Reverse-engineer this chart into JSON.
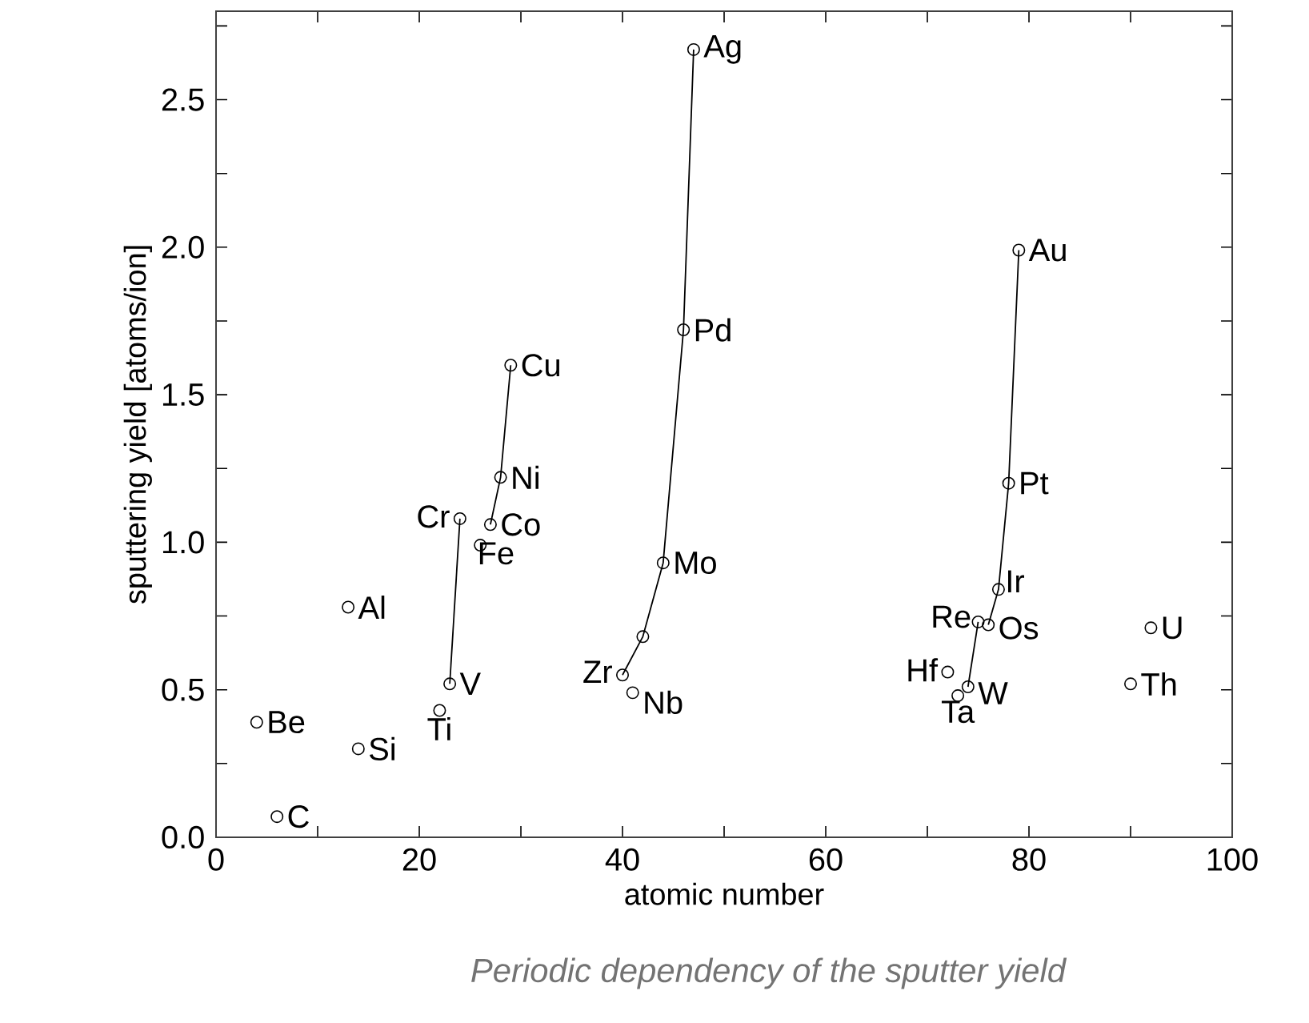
{
  "chart_data": {
    "type": "scatter",
    "xlabel": "atomic number",
    "ylabel": "sputtering yield [atoms/ion]",
    "xlim": [
      0,
      100
    ],
    "ylim": [
      0,
      2.8
    ],
    "xticks": [
      0,
      {
        "value": 10,
        "label": null
      },
      20,
      {
        "value": 30,
        "label": null
      },
      40,
      {
        "value": 50,
        "label": null
      },
      60,
      {
        "value": 70,
        "label": null
      },
      80,
      {
        "value": 90,
        "label": null
      },
      100
    ],
    "yticks": [
      {
        "value": 0,
        "label": "0.0"
      },
      {
        "value": 0.25,
        "label": null
      },
      0.5,
      {
        "value": 0.75,
        "label": null
      },
      {
        "value": 1,
        "label": "1.0"
      },
      {
        "value": 1.25,
        "label": null
      },
      1.5,
      {
        "value": 1.75,
        "label": null
      },
      {
        "value": 2,
        "label": "2.0"
      },
      {
        "value": 2.25,
        "label": null
      },
      2.5,
      {
        "value": 2.75,
        "label": null
      }
    ],
    "marker": "circle",
    "line_style": "solid",
    "series": [
      {
        "color": "#000000",
        "x": [
          4,
          6,
          13,
          14,
          22,
          26,
          41,
          72,
          73,
          90,
          92
        ],
        "values": [
          0.39,
          0.07,
          0.78,
          0.3,
          0.43,
          0.99,
          0.49,
          0.56,
          0.48,
          0.52,
          0.71
        ]
      },
      {
        "type": "line",
        "color": "#000000",
        "x": [
          23,
          24
        ],
        "values": [
          0.52,
          1.08
        ]
      },
      {
        "type": "line",
        "color": "#000000",
        "x": [
          27,
          28,
          29
        ],
        "values": [
          1.06,
          1.22,
          1.6
        ]
      },
      {
        "type": "line",
        "color": "#000000",
        "x": [
          40,
          42,
          44,
          46,
          47
        ],
        "values": [
          0.55,
          0.68,
          0.93,
          1.72,
          2.67
        ]
      },
      {
        "type": "line",
        "color": "#000000",
        "x": [
          74,
          75
        ],
        "values": [
          0.51,
          0.73
        ]
      },
      {
        "type": "line",
        "color": "#000000",
        "x": [
          76,
          77,
          78,
          79
        ],
        "values": [
          0.72,
          0.84,
          1.2,
          1.99
        ]
      }
    ],
    "annotations": [
      {
        "text": "Be",
        "x": 4,
        "y": 0.39
      },
      {
        "text": "C",
        "x": 6,
        "y": 0.07
      },
      {
        "text": "Al",
        "x": 13,
        "y": 0.78
      },
      {
        "text": "Si",
        "x": 14,
        "y": 0.3
      },
      {
        "text": "Ti",
        "x": 22,
        "y": 0.43
      },
      {
        "text": "V",
        "x": 23,
        "y": 0.52
      },
      {
        "text": "Cr",
        "x": 24,
        "y": 1.08
      },
      {
        "text": "Fe",
        "x": 26,
        "y": 0.99
      },
      {
        "text": "Co",
        "x": 27,
        "y": 1.06
      },
      {
        "text": "Ni",
        "x": 28,
        "y": 1.22
      },
      {
        "text": "Cu",
        "x": 29,
        "y": 1.6
      },
      {
        "text": "Zr",
        "x": 40,
        "y": 0.55
      },
      {
        "text": "Nb",
        "x": 41,
        "y": 0.49
      },
      {
        "text": "Mo",
        "x": 44,
        "y": 0.93
      },
      {
        "text": "Pd",
        "x": 46,
        "y": 1.72
      },
      {
        "text": "Ag",
        "x": 47,
        "y": 2.67
      },
      {
        "text": "Hf",
        "x": 72,
        "y": 0.56
      },
      {
        "text": "Ta",
        "x": 73,
        "y": 0.48
      },
      {
        "text": "W",
        "x": 74,
        "y": 0.51
      },
      {
        "text": "Re",
        "x": 75,
        "y": 0.73
      },
      {
        "text": "Os",
        "x": 76,
        "y": 0.72
      },
      {
        "text": "Ir",
        "x": 77,
        "y": 0.84
      },
      {
        "text": "Pt",
        "x": 78,
        "y": 1.2
      },
      {
        "text": "Au",
        "x": 79,
        "y": 1.99
      },
      {
        "text": "Th",
        "x": 90,
        "y": 0.52
      },
      {
        "text": "U",
        "x": 92,
        "y": 0.71
      },
      "Periodic dependency of the sputter yield"
    ]
  }
}
